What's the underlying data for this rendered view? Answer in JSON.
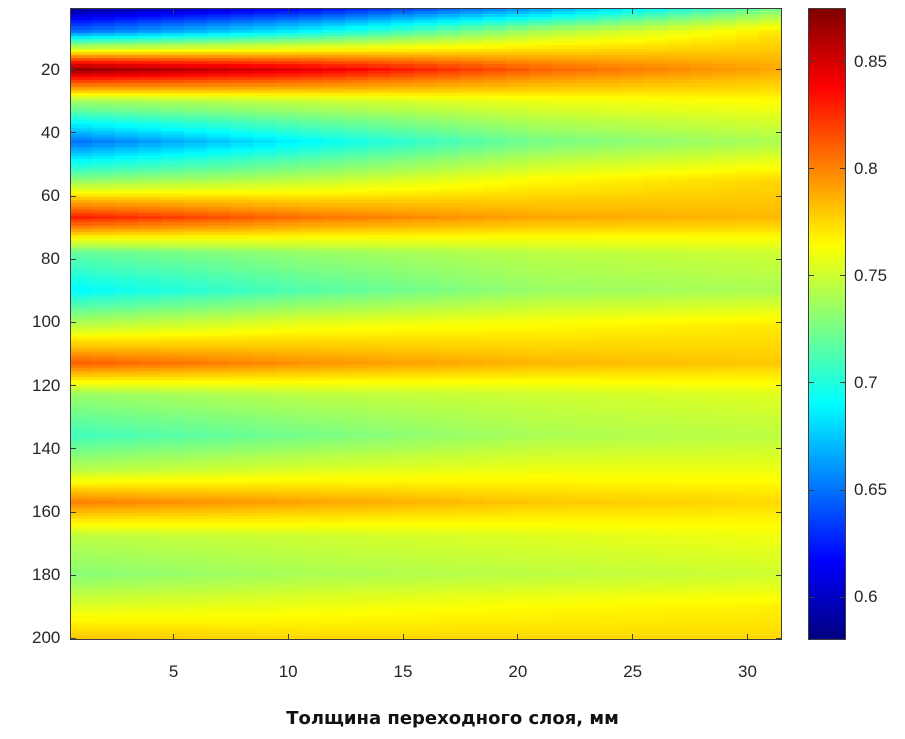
{
  "chart_data": {
    "type": "heatmap",
    "title": "",
    "xlabel": "Толщина переходного слоя, мм",
    "ylabel": "",
    "x_range": [
      0.5,
      31.5
    ],
    "y_range": [
      0.5,
      200.5
    ],
    "y_reversed": true,
    "x_ticks": [
      5,
      10,
      15,
      20,
      25,
      30
    ],
    "x_tick_labels": [
      "5",
      "10",
      "15",
      "20",
      "25",
      "30"
    ],
    "y_ticks": [
      20,
      40,
      60,
      80,
      100,
      120,
      140,
      160,
      180,
      200
    ],
    "y_tick_labels": [
      "20",
      "40",
      "60",
      "80",
      "100",
      "120",
      "140",
      "160",
      "180",
      "200"
    ],
    "colorbar": {
      "colormap": "jet",
      "range": [
        0.58,
        0.875
      ],
      "ticks": [
        0.6,
        0.65,
        0.7,
        0.75,
        0.8,
        0.85
      ],
      "tick_labels": [
        "0.6",
        "0.65",
        "0.7",
        "0.75",
        "0.8",
        "0.85"
      ]
    },
    "grid": false,
    "columns": [
      1,
      11,
      21,
      31
    ],
    "rows": [
      1,
      8,
      20,
      30,
      43,
      55,
      67,
      78,
      90,
      101,
      113,
      123,
      136,
      147,
      157,
      168,
      180,
      190,
      200
    ],
    "values": [
      [
        0.59,
        0.62,
        0.665,
        0.725
      ],
      [
        0.65,
        0.69,
        0.74,
        0.77
      ],
      [
        0.87,
        0.845,
        0.81,
        0.79
      ],
      [
        0.74,
        0.75,
        0.76,
        0.765
      ],
      [
        0.65,
        0.69,
        0.725,
        0.74
      ],
      [
        0.73,
        0.745,
        0.765,
        0.775
      ],
      [
        0.83,
        0.805,
        0.79,
        0.785
      ],
      [
        0.72,
        0.735,
        0.745,
        0.75
      ],
      [
        0.69,
        0.715,
        0.735,
        0.74
      ],
      [
        0.745,
        0.76,
        0.765,
        0.77
      ],
      [
        0.81,
        0.795,
        0.785,
        0.78
      ],
      [
        0.735,
        0.745,
        0.75,
        0.755
      ],
      [
        0.71,
        0.725,
        0.74,
        0.745
      ],
      [
        0.745,
        0.755,
        0.76,
        0.76
      ],
      [
        0.8,
        0.79,
        0.78,
        0.775
      ],
      [
        0.745,
        0.75,
        0.755,
        0.76
      ],
      [
        0.73,
        0.74,
        0.745,
        0.75
      ],
      [
        0.755,
        0.76,
        0.765,
        0.768
      ],
      [
        0.78,
        0.775,
        0.775,
        0.775
      ]
    ]
  }
}
